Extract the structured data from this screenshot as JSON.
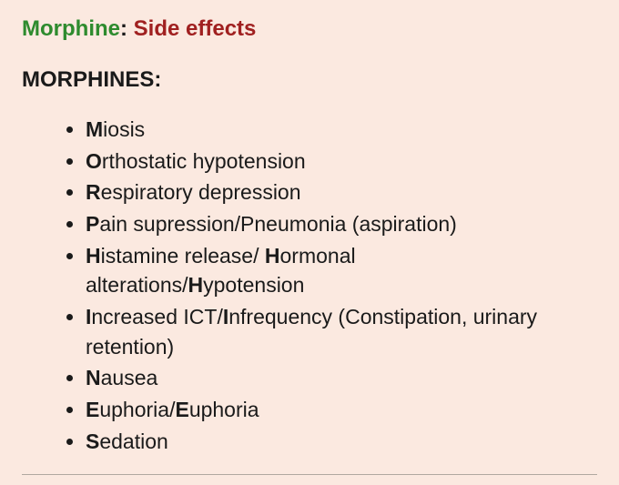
{
  "colors": {
    "background": "#fbe9e0",
    "drug_name": "#2e8b2e",
    "subject": "#a02020",
    "body_text": "#1a1a1a",
    "divider": "#b0a8a0"
  },
  "typography": {
    "header_fontsize": 24,
    "body_fontsize": 23,
    "line_height": 1.42,
    "font_family": "Arial, Helvetica, sans-serif"
  },
  "header": {
    "drug": "Morphine",
    "colon": ": ",
    "subject": "Side effects"
  },
  "mnemonic_label": "MORPHINES",
  "mnemonic_colon": ":",
  "items": [
    {
      "segments": [
        {
          "bold": true,
          "text": "M"
        },
        {
          "bold": false,
          "text": "iosis"
        }
      ]
    },
    {
      "segments": [
        {
          "bold": true,
          "text": "O"
        },
        {
          "bold": false,
          "text": "rthostatic hypotension"
        }
      ]
    },
    {
      "segments": [
        {
          "bold": true,
          "text": "R"
        },
        {
          "bold": false,
          "text": "espiratory depression"
        }
      ]
    },
    {
      "segments": [
        {
          "bold": true,
          "text": "P"
        },
        {
          "bold": false,
          "text": "ain supression/Pneumonia (aspiration)"
        }
      ]
    },
    {
      "segments": [
        {
          "bold": true,
          "text": "H"
        },
        {
          "bold": false,
          "text": "istamine release/ "
        },
        {
          "bold": true,
          "text": "H"
        },
        {
          "bold": false,
          "text": "ormonal alterations/"
        },
        {
          "bold": true,
          "text": "H"
        },
        {
          "bold": false,
          "text": "ypotension"
        }
      ]
    },
    {
      "segments": [
        {
          "bold": true,
          "text": "I"
        },
        {
          "bold": false,
          "text": "ncreased ICT/"
        },
        {
          "bold": true,
          "text": "I"
        },
        {
          "bold": false,
          "text": "nfrequency (Constipation, urinary retention)"
        }
      ]
    },
    {
      "segments": [
        {
          "bold": true,
          "text": "N"
        },
        {
          "bold": false,
          "text": "ausea"
        }
      ]
    },
    {
      "segments": [
        {
          "bold": true,
          "text": "E"
        },
        {
          "bold": false,
          "text": "uphoria/"
        },
        {
          "bold": true,
          "text": "E"
        },
        {
          "bold": false,
          "text": "uphoria"
        }
      ]
    },
    {
      "segments": [
        {
          "bold": true,
          "text": "S"
        },
        {
          "bold": false,
          "text": "edation"
        }
      ]
    }
  ]
}
